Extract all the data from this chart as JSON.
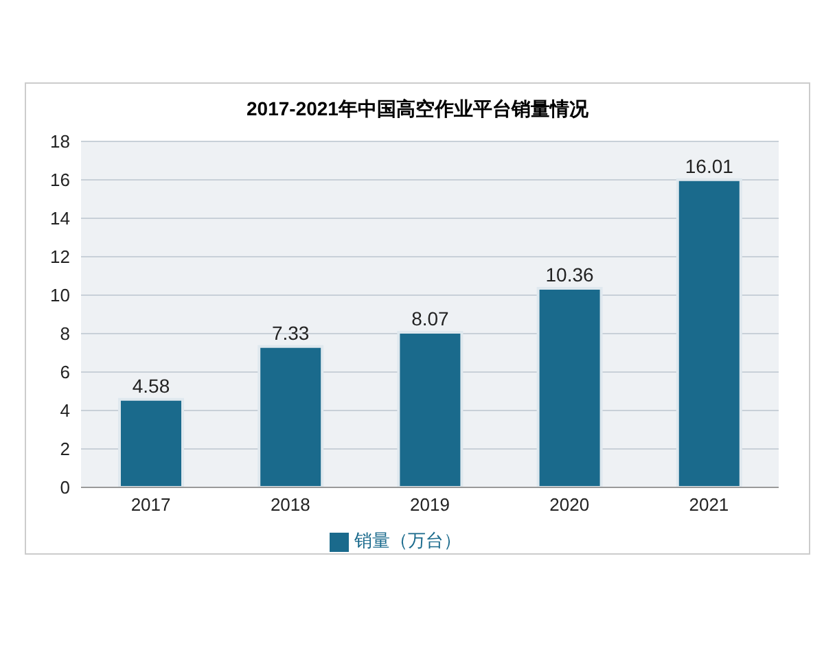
{
  "chart_data": {
    "type": "bar",
    "title": "2017-2021年中国高空作业平台销量情况",
    "categories": [
      "2017",
      "2018",
      "2019",
      "2020",
      "2021"
    ],
    "series": [
      {
        "name": "销量（万台）",
        "color": "#1a6a8c",
        "values": [
          4.58,
          7.33,
          8.07,
          10.36,
          16.01
        ]
      }
    ],
    "ylim": [
      0,
      18
    ],
    "yticks": [
      0,
      2,
      4,
      6,
      8,
      10,
      12,
      14,
      16,
      18
    ],
    "grid": "y",
    "legend": "bottom",
    "data_labels": true
  }
}
